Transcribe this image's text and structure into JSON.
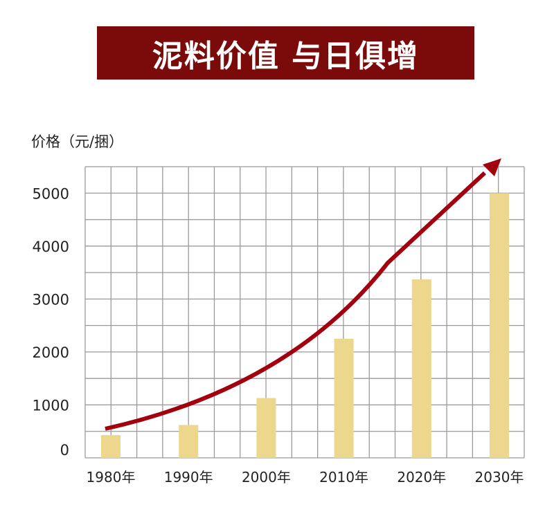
{
  "banner": {
    "title": "泥料价值 与日俱增"
  },
  "colors": {
    "banner": "#7b0b0b",
    "bar": "#ecd78c",
    "arrow": "#a3000f",
    "grid": "#9a9a9a"
  },
  "chart_data": {
    "type": "bar",
    "title": "",
    "ylabel": "价格（元/捆）",
    "xlabel": "",
    "categories": [
      "1980年",
      "1990年",
      "2000年",
      "2010年",
      "2020年",
      "2030年"
    ],
    "values": [
      430,
      620,
      1130,
      2250,
      3370,
      5000
    ],
    "yticks": [
      "0",
      "1000",
      "2000",
      "3000",
      "4000",
      "5000"
    ],
    "ylim": [
      0,
      5500
    ],
    "grid": true,
    "trend_arrow": "upward curved red arrow"
  }
}
